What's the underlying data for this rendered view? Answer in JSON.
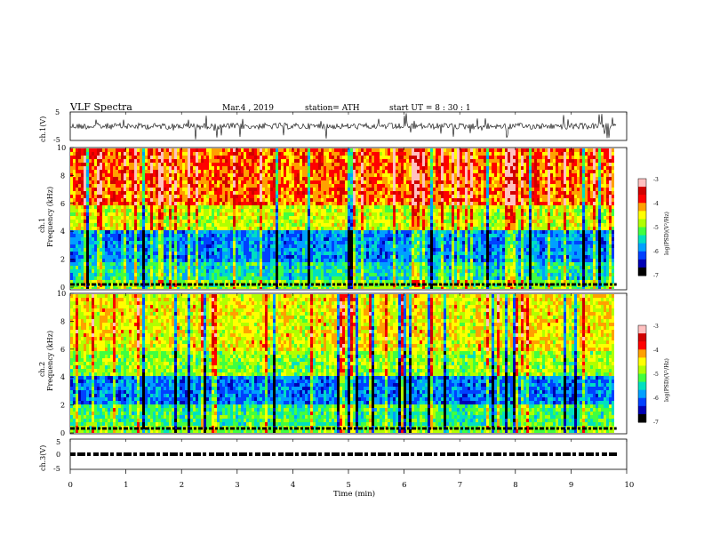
{
  "header": {
    "title": "VLF  Spectra",
    "date": "Mar.4  , 2019",
    "station": "station= ATH",
    "start": "start  UT  =   8  : 30 : 1"
  },
  "chart_data": [
    {
      "type": "line",
      "panel": "ch1-waveform",
      "ylabel": "ch.1(V)",
      "ylim": [
        -5,
        5
      ],
      "y_ticks": [
        "5",
        "-5"
      ],
      "xlim": [
        0,
        10
      ],
      "description_series": "noisy waveform centered near 0 V with frequent spikes"
    },
    {
      "type": "heatmap",
      "panel": "ch1-spectrogram",
      "ylabel": "ch.1\nFrequency  (kHz)",
      "ylabel_line1": "ch.1",
      "ylabel_line2": "Frequency  (kHz)",
      "ylim": [
        0,
        10
      ],
      "y_ticks": [
        "0",
        "2",
        "4",
        "6",
        "8",
        "10"
      ],
      "xlim": [
        0,
        9.8
      ],
      "colorbar": {
        "label": "log(PSD)(V²/Hz)",
        "range": [
          -7,
          -3
        ],
        "ticks": [
          "-3",
          "-4",
          "-5",
          "-6",
          "-7"
        ]
      }
    },
    {
      "type": "heatmap",
      "panel": "ch2-spectrogram",
      "ylabel_line1": "ch.2",
      "ylabel_line2": "Frequency  (kHz)",
      "ylim": [
        0,
        10
      ],
      "y_ticks": [
        "0",
        "2",
        "4",
        "6",
        "8",
        "10"
      ],
      "xlim": [
        0,
        9.8
      ],
      "colorbar": {
        "label": "log(PSD)(V²/Hz)",
        "range": [
          -7,
          -3
        ],
        "ticks": [
          "-3",
          "-4",
          "-5",
          "-6",
          "-7"
        ]
      }
    },
    {
      "type": "line",
      "panel": "ch3-waveform",
      "ylabel": "ch.3(V)",
      "ylim": [
        -5,
        5
      ],
      "y_ticks": [
        "5",
        "0",
        "-5"
      ],
      "xlim": [
        0,
        10
      ],
      "description_series": "dashed trace near 0 V"
    }
  ],
  "xaxis": {
    "label": "Time  (min)",
    "ticks": [
      "0",
      "1",
      "2",
      "3",
      "4",
      "5",
      "6",
      "7",
      "8",
      "9",
      "10"
    ],
    "range": [
      0,
      10
    ]
  },
  "colors": {
    "scale": [
      "#000000",
      "#0000b4",
      "#0040ff",
      "#00a0ff",
      "#00e0c0",
      "#40ff40",
      "#b0ff00",
      "#ffff00",
      "#ffa000",
      "#ff0000",
      "#d00000",
      "#ffc0c0",
      "#ffffff"
    ]
  }
}
